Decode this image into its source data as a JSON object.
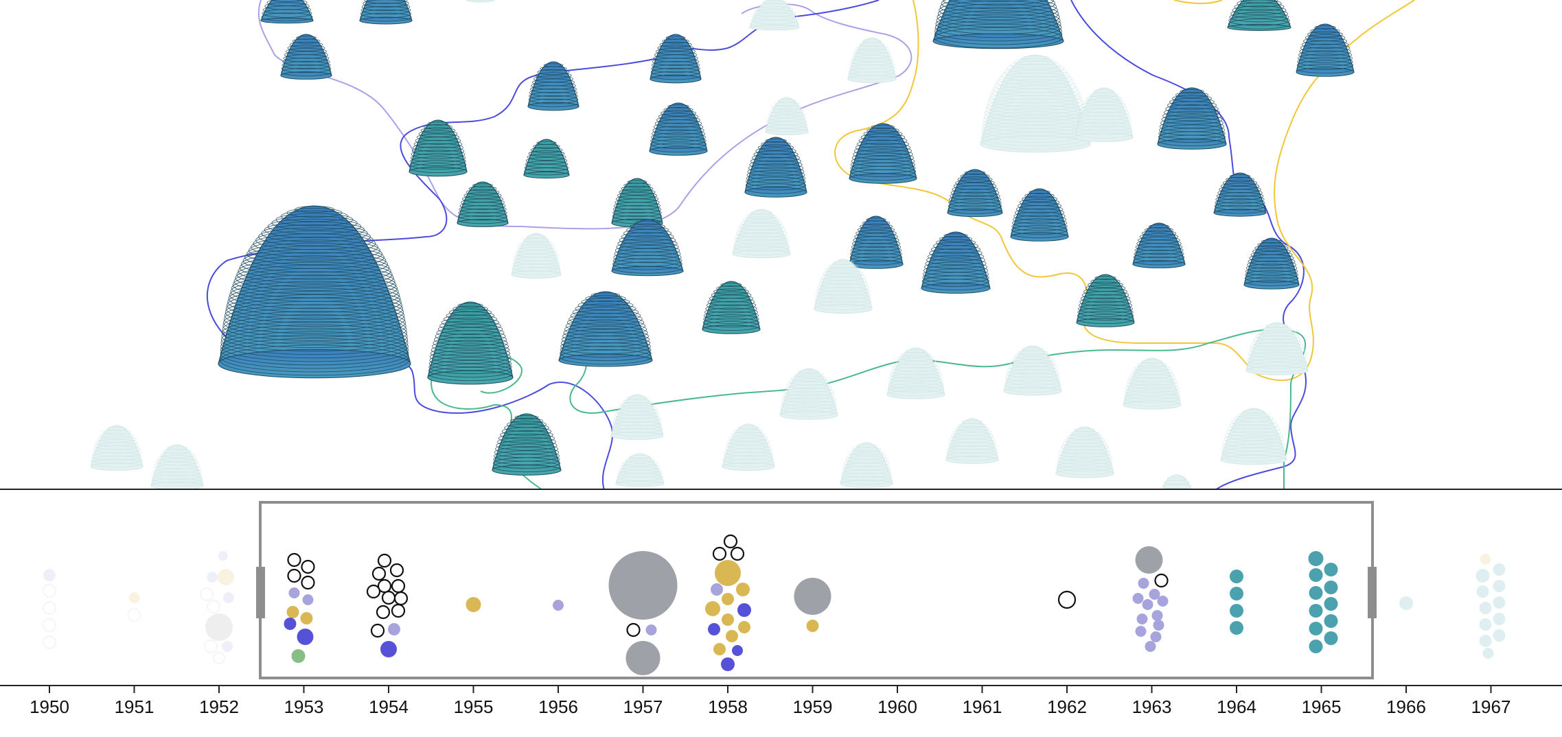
{
  "colors": {
    "mound_dark_blue": "#3f86b9",
    "mound_teal": "#3f9aa6",
    "mound_faded": "#e3f1f1",
    "contour_blue": "#4a4ae0",
    "contour_lavender": "#a9a0e8",
    "contour_yellow": "#f2c634",
    "contour_green": "#49b98a",
    "timeline_axis": "#222222",
    "selection_frame": "#8e8e8e",
    "handle": "#8e8e8e",
    "dot_gray": "#9ea1a7",
    "dot_gold": "#d9b752",
    "dot_lavender": "#a7a4dd",
    "dot_blue": "#5552d8",
    "dot_green": "#86be86",
    "dot_teal": "#4ba2ae"
  },
  "timeline": {
    "years": [
      "1950",
      "1951",
      "1952",
      "1953",
      "1954",
      "1955",
      "1956",
      "1957",
      "1958",
      "1959",
      "1960",
      "1961",
      "1962",
      "1963",
      "1964",
      "1965",
      "1966",
      "1967"
    ],
    "selected_range": [
      "1953",
      "1965"
    ]
  },
  "icons": {
    "mound": "contour-mound-icon",
    "handle": "range-handle-icon",
    "outline_dot": "outline-circle-icon"
  }
}
